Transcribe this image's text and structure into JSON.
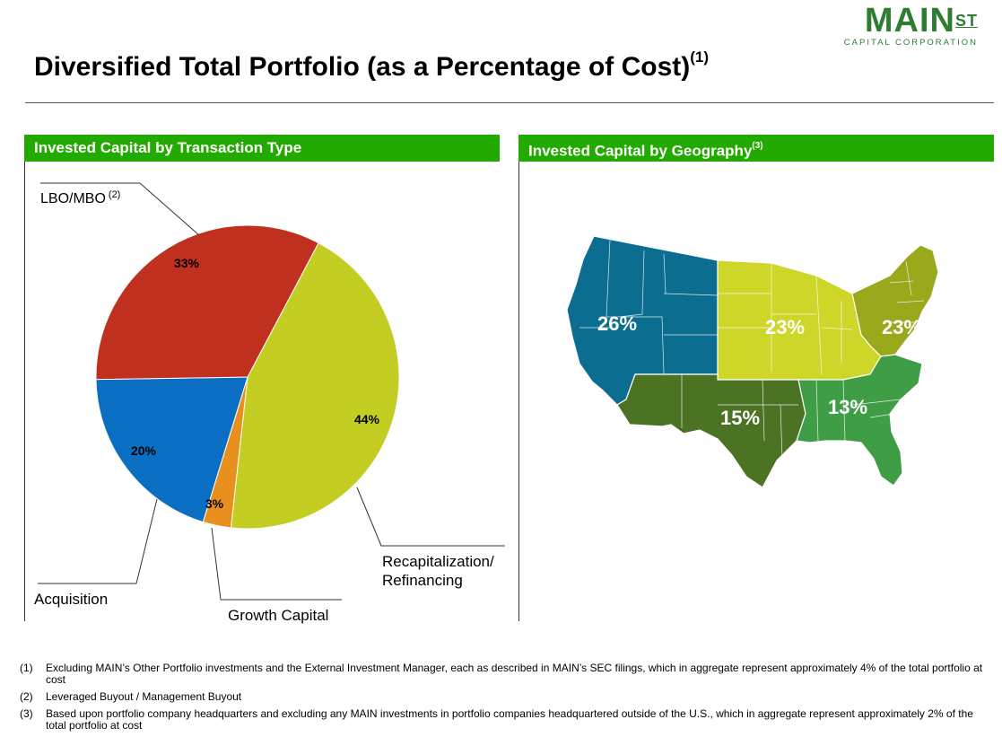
{
  "logo": {
    "main": "MAIN",
    "st": "ST",
    "sub": "CAPITAL CORPORATION"
  },
  "title": {
    "text": "Diversified Total Portfolio (as a Percentage of Cost)",
    "note": "(1)"
  },
  "left_panel": {
    "header": "Invested Capital by Transaction Type"
  },
  "right_panel": {
    "header": "Invested Capital by Geography",
    "note": "(3)"
  },
  "chart_data": [
    {
      "type": "pie",
      "title": "Invested Capital by Transaction Type",
      "slices": [
        {
          "label": "LBO/MBO",
          "note": "(2)",
          "value": 33,
          "display": "33%",
          "color": "#c0301f"
        },
        {
          "label": "Recapitalization/ Refinancing",
          "line1": "Recapitalization/",
          "line2": "Refinancing",
          "value": 44,
          "display": "44%",
          "color": "#c3cd22"
        },
        {
          "label": "Growth Capital",
          "value": 3,
          "display": "3%",
          "color": "#e8901e"
        },
        {
          "label": "Acquisition",
          "value": 20,
          "display": "20%",
          "color": "#0a6ec3"
        }
      ]
    },
    {
      "type": "map",
      "title": "Invested Capital by Geography",
      "regions": [
        {
          "name": "West",
          "value": 26,
          "display": "26%",
          "color": "#0b6d8f"
        },
        {
          "name": "Midwest",
          "value": 23,
          "display": "23%",
          "color": "#cdd629"
        },
        {
          "name": "Northeast",
          "value": 23,
          "display": "23%",
          "color": "#9aa81c"
        },
        {
          "name": "Southwest",
          "value": 15,
          "display": "15%",
          "color": "#4c7224"
        },
        {
          "name": "Southeast",
          "value": 13,
          "display": "13%",
          "color": "#3f9e45"
        }
      ]
    }
  ],
  "footnotes": [
    {
      "num": "(1)",
      "text": "Excluding MAIN’s Other Portfolio investments and the External Investment Manager, each as described in MAIN’s SEC filings, which in aggregate represent approximately 4% of the total portfolio at cost"
    },
    {
      "num": "(2)",
      "text": "Leveraged Buyout / Management Buyout"
    },
    {
      "num": "(3)",
      "text": "Based upon portfolio company headquarters and excluding any MAIN investments in portfolio companies headquartered outside of the U.S., which in aggregate represent approximately 2% of the total portfolio at cost"
    }
  ]
}
